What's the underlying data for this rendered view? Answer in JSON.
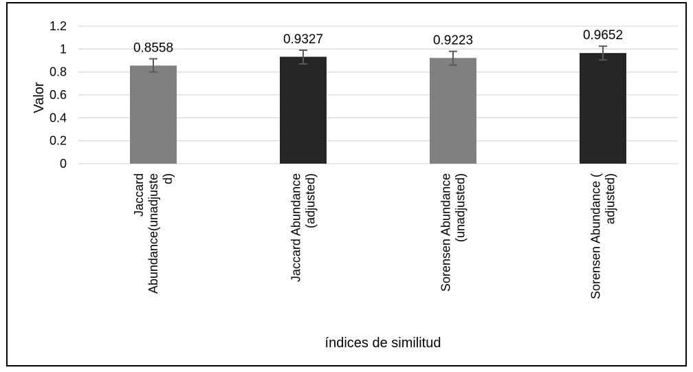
{
  "chart_data": {
    "type": "bar",
    "title": "",
    "xlabel": "índices de similitud",
    "ylabel": "Valor",
    "ylim": [
      0,
      1.2
    ],
    "yticks": [
      0,
      0.2,
      0.4,
      0.6,
      0.8,
      1,
      1.2
    ],
    "ytick_labels": [
      "0",
      "0.2",
      "0.4",
      "0.6",
      "0.8",
      "1",
      "1.2"
    ],
    "grid": true,
    "legend": "none",
    "categories": [
      "Jaccard Abundance(unadjusted)",
      "Jaccard Abundance (adjusted)",
      "Sorensen Abundance (unadjusted)",
      "Sorensen Abundance ( adjusted)"
    ],
    "category_lines": [
      [
        "Jaccard",
        "Abundance(unadjuste",
        "d)"
      ],
      [
        "Jaccard Abundance",
        "(adjusted)"
      ],
      [
        "Sorensen Abundance",
        "(unadjusted)"
      ],
      [
        "Sorensen Abundance (",
        "adjusted)"
      ]
    ],
    "values": [
      0.8558,
      0.9327,
      0.9223,
      0.9652
    ],
    "value_labels": [
      "0.8558",
      "0.9327",
      "0.9223",
      "0.9652"
    ],
    "error_low": [
      0.8,
      0.87,
      0.86,
      0.905
    ],
    "error_high": [
      0.915,
      0.99,
      0.98,
      1.025
    ],
    "colors": [
      "#808080",
      "#262626",
      "#808080",
      "#262626"
    ],
    "error_color": "#595959",
    "grid_color": "#d9d9d9"
  }
}
